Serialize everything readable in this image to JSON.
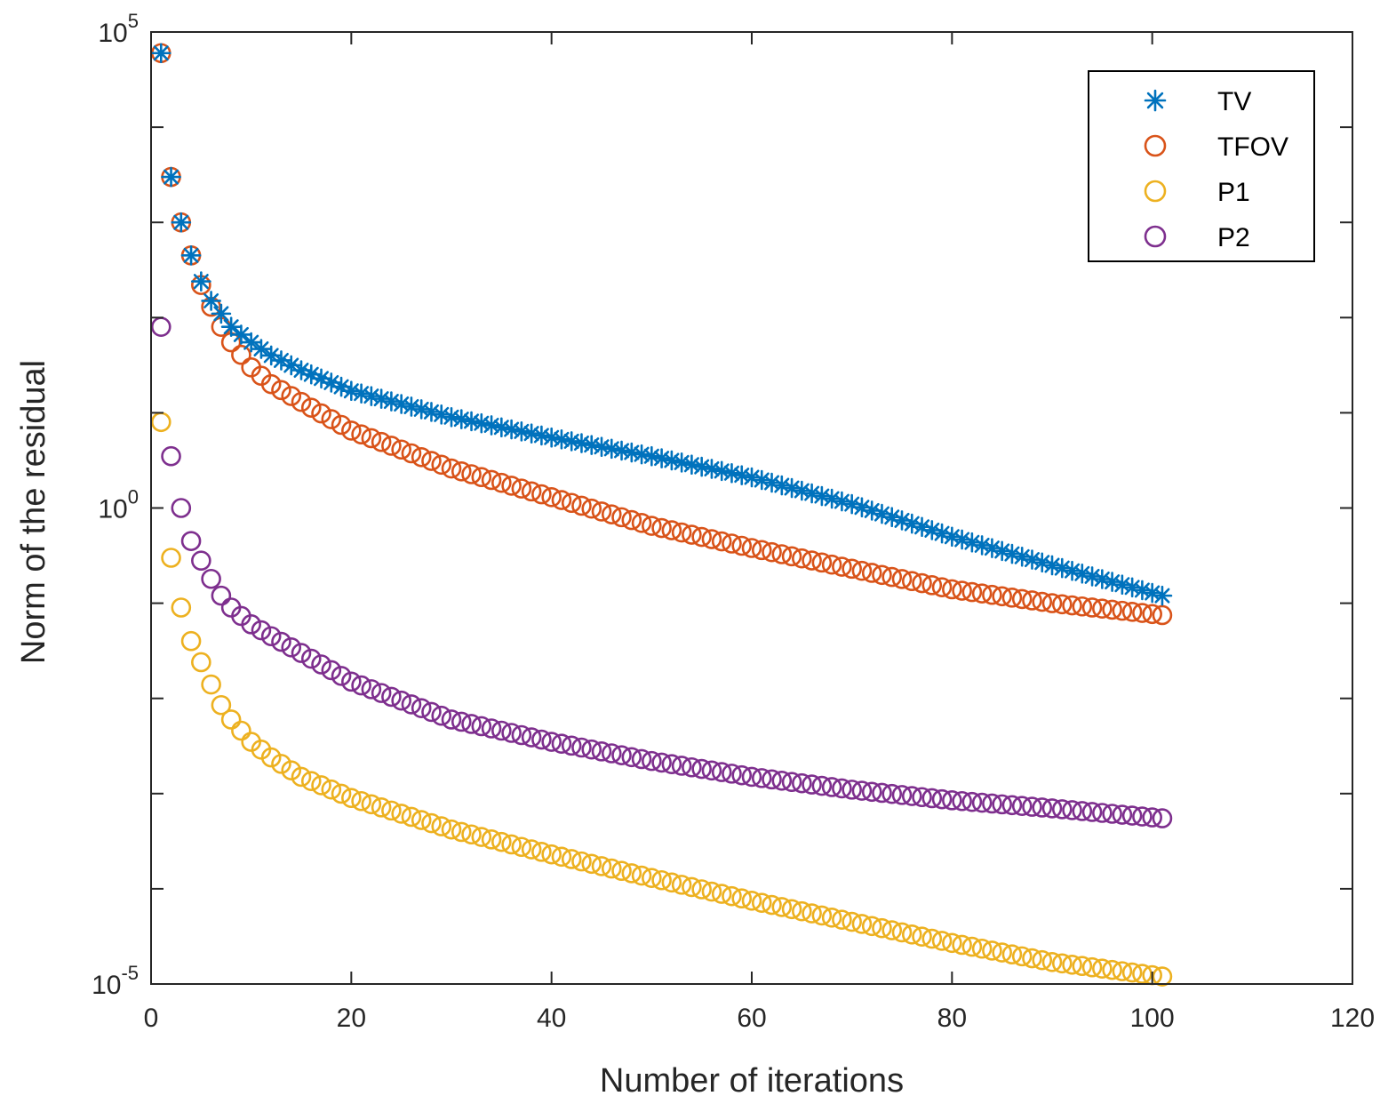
{
  "chart_data": {
    "type": "scatter",
    "title": "",
    "xlabel": "Number of iterations",
    "ylabel": "Norm of the residual",
    "xlim": [
      0,
      120
    ],
    "ylim": [
      1e-05,
      100000
    ],
    "yscale": "log",
    "grid": false,
    "legend_position": "top-right",
    "x_ticks": [
      {
        "value": 0,
        "label": "0"
      },
      {
        "value": 20,
        "label": "20"
      },
      {
        "value": 40,
        "label": "40"
      },
      {
        "value": 60,
        "label": "60"
      },
      {
        "value": 80,
        "label": "80"
      },
      {
        "value": 100,
        "label": "100"
      },
      {
        "value": 120,
        "label": "120"
      }
    ],
    "y_ticks": [
      {
        "value": 100000,
        "base": "10",
        "exponent": "5"
      },
      {
        "value": 1,
        "base": "10",
        "exponent": "0"
      },
      {
        "value": 1e-05,
        "base": "10",
        "exponent": "-5"
      }
    ],
    "y_minor_ticks": [
      10000,
      1000,
      100,
      10,
      0.1,
      0.01,
      0.001,
      0.0001
    ],
    "x_range": [
      1,
      101
    ],
    "series": [
      {
        "name": "TV",
        "marker": "asterisk",
        "color": "#0072BD",
        "x_anchors": [
          1,
          2,
          3,
          4,
          5,
          6,
          7,
          8,
          10,
          12,
          15,
          20,
          30,
          40,
          50,
          60,
          70,
          80,
          90,
          101
        ],
        "y_anchors": [
          60000,
          3000,
          1000,
          450,
          240,
          150,
          110,
          80,
          55,
          40,
          28,
          17,
          9,
          5.5,
          3.5,
          2.1,
          1.1,
          0.5,
          0.25,
          0.12
        ]
      },
      {
        "name": "TFOV",
        "marker": "circle",
        "color": "#D95319",
        "x_anchors": [
          1,
          2,
          3,
          4,
          5,
          6,
          7,
          8,
          10,
          12,
          15,
          20,
          30,
          40,
          50,
          60,
          70,
          80,
          90,
          101
        ],
        "y_anchors": [
          60000,
          3000,
          1000,
          450,
          220,
          130,
          80,
          55,
          30,
          20,
          13,
          6.5,
          2.6,
          1.3,
          0.65,
          0.38,
          0.23,
          0.14,
          0.1,
          0.075
        ]
      },
      {
        "name": "P1",
        "marker": "circle",
        "color": "#EDB120",
        "x_anchors": [
          1,
          2,
          3,
          4,
          5,
          6,
          7,
          8,
          10,
          12,
          15,
          20,
          30,
          40,
          50,
          60,
          70,
          80,
          90,
          101
        ],
        "y_anchors": [
          8,
          0.3,
          0.09,
          0.04,
          0.024,
          0.014,
          0.0085,
          0.006,
          0.0035,
          0.0024,
          0.0015,
          0.0009,
          0.00042,
          0.00023,
          0.00013,
          7.5e-05,
          4.5e-05,
          2.7e-05,
          1.7e-05,
          1.2e-05
        ]
      },
      {
        "name": "P2",
        "marker": "circle",
        "color": "#7E2F8E",
        "x_anchors": [
          1,
          2,
          3,
          4,
          5,
          6,
          7,
          8,
          10,
          12,
          15,
          20,
          30,
          40,
          50,
          60,
          70,
          80,
          90,
          101
        ],
        "y_anchors": [
          80,
          3.5,
          1.0,
          0.45,
          0.28,
          0.18,
          0.12,
          0.09,
          0.06,
          0.045,
          0.03,
          0.015,
          0.006,
          0.0035,
          0.0022,
          0.0015,
          0.0011,
          0.00085,
          0.0007,
          0.00055
        ]
      }
    ]
  }
}
